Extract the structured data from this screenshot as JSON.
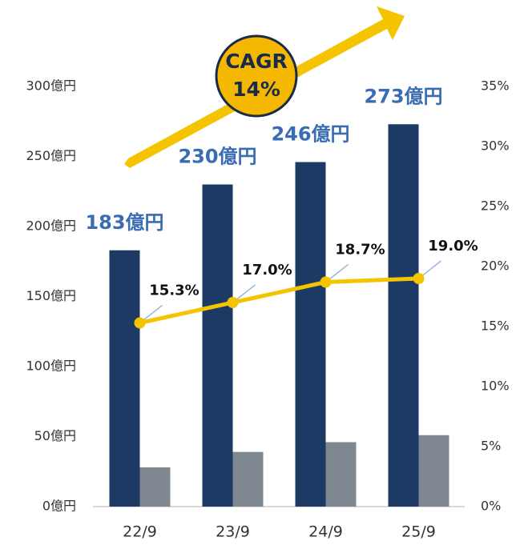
{
  "chart_data": {
    "type": "bar",
    "categories": [
      "22/9",
      "23/9",
      "24/9",
      "25/9"
    ],
    "series": [
      {
        "color": "#1c3a63",
        "values": [
          183,
          230,
          246,
          273
        ],
        "value_labels": [
          "183億円",
          "230億円",
          "246億円",
          "273億円"
        ]
      },
      {
        "color": "#7f8890",
        "values": [
          28,
          39,
          46,
          51
        ]
      },
      {
        "type": "line",
        "axis": "y2",
        "color": "#f5c400",
        "values": [
          15.3,
          17.0,
          18.7,
          19.0
        ],
        "value_labels": [
          "15.3%",
          "17.0%",
          "18.7%",
          "19.0%"
        ]
      }
    ],
    "ylim": [
      0,
      300
    ],
    "yticks": [
      {
        "value": 0,
        "label": "0億円"
      },
      {
        "value": 50,
        "label": "50億円"
      },
      {
        "value": 100,
        "label": "100億円"
      },
      {
        "value": 150,
        "label": "150億円"
      },
      {
        "value": 200,
        "label": "200億円"
      },
      {
        "value": 250,
        "label": "250億円"
      },
      {
        "value": 300,
        "label": "300億円"
      }
    ],
    "y2lim": [
      0,
      35
    ],
    "y2ticks": [
      {
        "value": 0,
        "label": "0%"
      },
      {
        "value": 5,
        "label": "5%"
      },
      {
        "value": 10,
        "label": "10%"
      },
      {
        "value": 15,
        "label": "15%"
      },
      {
        "value": 20,
        "label": "20%"
      },
      {
        "value": 25,
        "label": "25%"
      },
      {
        "value": 30,
        "label": "30%"
      },
      {
        "value": 35,
        "label": "35%"
      }
    ],
    "annotations": [
      "CAGR",
      "14%"
    ]
  }
}
